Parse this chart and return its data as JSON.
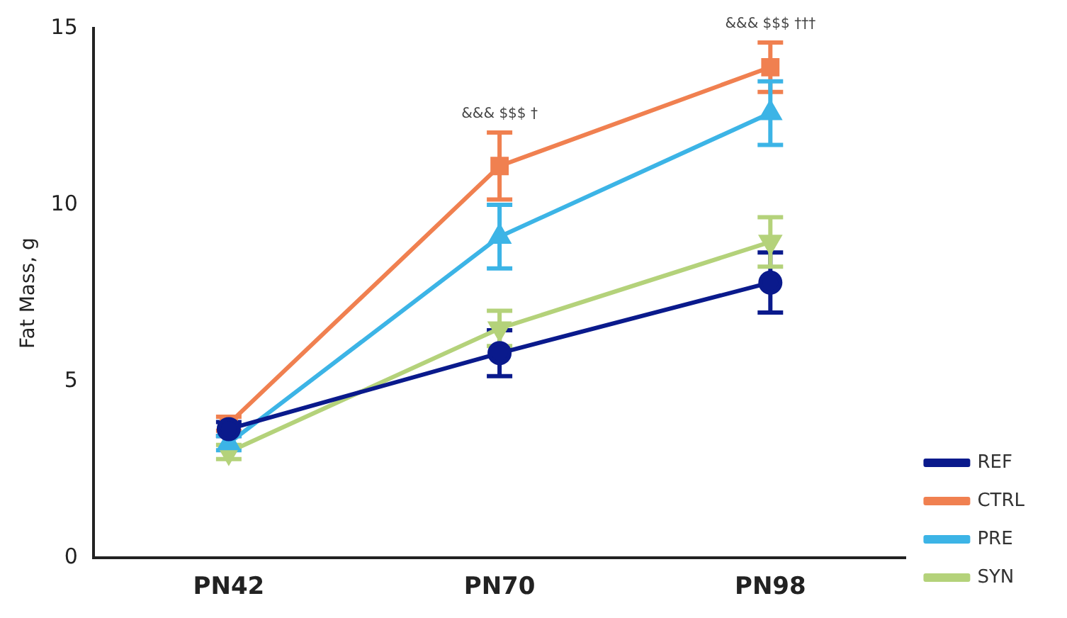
{
  "chart_data": {
    "type": "line",
    "ylabel": "Fat Mass, g",
    "categories": [
      "PN42",
      "PN70",
      "PN98"
    ],
    "series": [
      {
        "name": "REF",
        "color": "#0a1a8c",
        "marker": "circle",
        "values": [
          3.65,
          5.8,
          7.8
        ],
        "errors": [
          0.2,
          0.65,
          0.85
        ]
      },
      {
        "name": "CTRL",
        "color": "#f08050",
        "marker": "square",
        "values": [
          3.8,
          11.1,
          13.9
        ],
        "errors": [
          0.2,
          0.95,
          0.7
        ]
      },
      {
        "name": "PRE",
        "color": "#3cb4e6",
        "marker": "triangle",
        "values": [
          3.25,
          9.1,
          12.6
        ],
        "errors": [
          0.2,
          0.9,
          0.9
        ]
      },
      {
        "name": "SYN",
        "color": "#b4d27a",
        "marker": "triangle-down",
        "values": [
          3.0,
          6.5,
          8.95
        ],
        "errors": [
          0.2,
          0.5,
          0.7
        ]
      }
    ],
    "ylim": [
      0,
      15
    ],
    "yticks": [
      0,
      5,
      10,
      15
    ],
    "grid": false,
    "legend": "bottom right",
    "annotations": [
      "&&& $$$ †",
      "&&& $$$ †††"
    ]
  }
}
